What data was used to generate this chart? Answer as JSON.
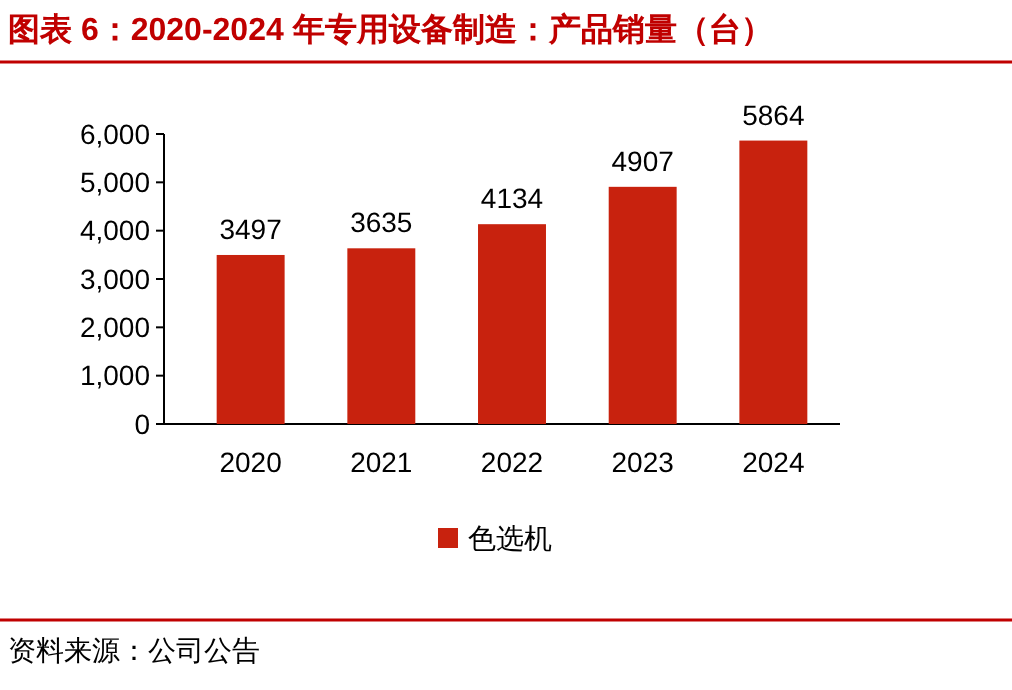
{
  "chart_data": {
    "type": "bar",
    "title": "图表 6：2020-2024 年专用设备制造：产品销量（台）",
    "categories": [
      "2020",
      "2021",
      "2022",
      "2023",
      "2024"
    ],
    "series": [
      {
        "name": "色选机",
        "color": "#c8220e",
        "values": [
          3497,
          3635,
          4134,
          4907,
          5864
        ]
      }
    ],
    "ylim": [
      0,
      6000
    ],
    "yticks": [
      0,
      {
        "value": 1000,
        "label": "1,000"
      },
      {
        "value": 2000,
        "label": "2,000"
      },
      {
        "value": 3000,
        "label": "3,000"
      },
      {
        "value": 4000,
        "label": "4,000"
      },
      {
        "value": 5000,
        "label": "5,000"
      },
      {
        "value": 6000,
        "label": "6,000"
      }
    ],
    "data_labels": true,
    "legend": "bottom",
    "grid": false,
    "annotations": [
      "资料来源：公司公告"
    ]
  }
}
